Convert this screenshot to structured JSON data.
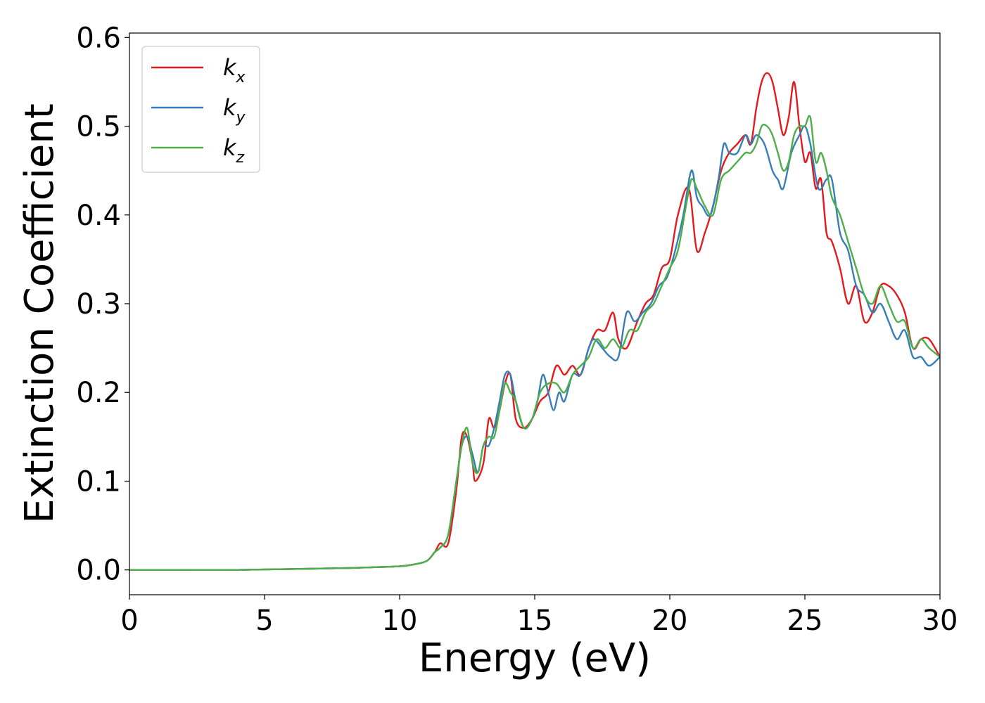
{
  "chart_data": {
    "type": "line",
    "xlabel": "Energy (eV)",
    "ylabel": "Extinction Coefficient",
    "xlim": [
      0,
      30
    ],
    "ylim": [
      -0.028,
      0.605
    ],
    "xticks": [
      0,
      5,
      10,
      15,
      20,
      25,
      30
    ],
    "yticks": [
      0.0,
      0.1,
      0.2,
      0.3,
      0.4,
      0.5,
      0.6
    ],
    "grid": false,
    "legend": "top-left",
    "series": [
      {
        "name": "k",
        "subscript": "x",
        "color": "#e41a1c",
        "x": [
          0,
          2,
          4,
          6,
          8,
          9,
          10,
          10.5,
          11,
          11.3,
          11.5,
          11.8,
          12.1,
          12.3,
          12.5,
          12.7,
          12.8,
          13.1,
          13.3,
          13.5,
          13.7,
          13.9,
          14.1,
          14.3,
          14.6,
          14.9,
          15.2,
          15.5,
          15.8,
          16.1,
          16.4,
          16.7,
          17.0,
          17.3,
          17.6,
          17.9,
          18.1,
          18.4,
          18.8,
          19.1,
          19.4,
          19.7,
          20.0,
          20.3,
          20.7,
          21.0,
          21.3,
          21.6,
          21.9,
          22.2,
          22.5,
          22.8,
          23.0,
          23.2,
          23.4,
          23.6,
          23.8,
          24.0,
          24.2,
          24.4,
          24.6,
          24.8,
          25.0,
          25.2,
          25.4,
          25.6,
          25.8,
          26.0,
          26.3,
          26.6,
          26.9,
          27.2,
          27.5,
          27.8,
          28.1,
          28.4,
          28.7,
          29.0,
          29.3,
          29.6,
          30.0
        ],
        "y": [
          0.0,
          0.0,
          0.0,
          0.001,
          0.002,
          0.003,
          0.004,
          0.006,
          0.01,
          0.02,
          0.03,
          0.03,
          0.09,
          0.15,
          0.15,
          0.12,
          0.1,
          0.12,
          0.17,
          0.16,
          0.18,
          0.21,
          0.22,
          0.17,
          0.16,
          0.17,
          0.19,
          0.2,
          0.23,
          0.22,
          0.23,
          0.22,
          0.25,
          0.27,
          0.27,
          0.29,
          0.26,
          0.25,
          0.28,
          0.3,
          0.31,
          0.34,
          0.35,
          0.4,
          0.43,
          0.36,
          0.38,
          0.41,
          0.45,
          0.47,
          0.48,
          0.49,
          0.48,
          0.52,
          0.55,
          0.56,
          0.55,
          0.52,
          0.49,
          0.51,
          0.55,
          0.5,
          0.46,
          0.47,
          0.43,
          0.44,
          0.38,
          0.37,
          0.34,
          0.3,
          0.32,
          0.28,
          0.29,
          0.32,
          0.32,
          0.31,
          0.29,
          0.25,
          0.26,
          0.26,
          0.24
        ]
      },
      {
        "name": "k",
        "subscript": "y",
        "color": "#377eb8",
        "x": [
          0,
          2,
          4,
          6,
          8,
          9,
          10,
          10.5,
          11,
          11.3,
          11.5,
          11.8,
          12.1,
          12.3,
          12.5,
          12.7,
          12.9,
          13.1,
          13.3,
          13.5,
          13.7,
          13.9,
          14.1,
          14.3,
          14.6,
          14.9,
          15.1,
          15.3,
          15.5,
          15.7,
          15.9,
          16.1,
          16.4,
          16.7,
          17.0,
          17.2,
          17.5,
          17.8,
          18.1,
          18.4,
          18.7,
          19.0,
          19.3,
          19.6,
          19.9,
          20.2,
          20.5,
          20.8,
          21.0,
          21.2,
          21.5,
          21.8,
          22.0,
          22.2,
          22.5,
          22.8,
          23.0,
          23.2,
          23.5,
          23.8,
          24.0,
          24.2,
          24.5,
          24.8,
          25.0,
          25.2,
          25.5,
          25.8,
          26.0,
          26.3,
          26.6,
          26.9,
          27.2,
          27.5,
          27.8,
          28.1,
          28.4,
          28.7,
          29.0,
          29.3,
          29.6,
          30.0
        ],
        "y": [
          0.0,
          0.0,
          0.0,
          0.001,
          0.002,
          0.003,
          0.004,
          0.006,
          0.01,
          0.02,
          0.025,
          0.04,
          0.1,
          0.14,
          0.15,
          0.13,
          0.11,
          0.14,
          0.14,
          0.16,
          0.19,
          0.22,
          0.22,
          0.19,
          0.16,
          0.17,
          0.19,
          0.22,
          0.2,
          0.18,
          0.2,
          0.19,
          0.22,
          0.22,
          0.25,
          0.26,
          0.25,
          0.24,
          0.24,
          0.29,
          0.28,
          0.29,
          0.3,
          0.32,
          0.33,
          0.36,
          0.4,
          0.45,
          0.42,
          0.41,
          0.4,
          0.44,
          0.48,
          0.47,
          0.47,
          0.49,
          0.48,
          0.49,
          0.48,
          0.45,
          0.44,
          0.43,
          0.47,
          0.49,
          0.5,
          0.48,
          0.43,
          0.44,
          0.44,
          0.38,
          0.36,
          0.32,
          0.31,
          0.29,
          0.3,
          0.28,
          0.26,
          0.27,
          0.24,
          0.24,
          0.23,
          0.24
        ]
      },
      {
        "name": "k",
        "subscript": "z",
        "color": "#4daf4a",
        "x": [
          0,
          2,
          4,
          6,
          8,
          9,
          10,
          10.5,
          11,
          11.3,
          11.5,
          11.8,
          12.1,
          12.3,
          12.5,
          12.7,
          12.9,
          13.1,
          13.3,
          13.5,
          13.7,
          13.9,
          14.1,
          14.3,
          14.6,
          14.9,
          15.2,
          15.5,
          15.8,
          16.1,
          16.4,
          16.7,
          17.0,
          17.3,
          17.6,
          17.9,
          18.2,
          18.5,
          18.8,
          19.1,
          19.4,
          19.7,
          20.0,
          20.3,
          20.6,
          20.8,
          21.0,
          21.3,
          21.6,
          21.9,
          22.2,
          22.5,
          22.8,
          23.0,
          23.2,
          23.4,
          23.6,
          23.8,
          24.0,
          24.2,
          24.4,
          24.6,
          24.8,
          25.0,
          25.2,
          25.4,
          25.6,
          25.8,
          26.0,
          26.3,
          26.6,
          26.9,
          27.2,
          27.5,
          27.8,
          28.1,
          28.4,
          28.7,
          29.0,
          29.3,
          29.6,
          30.0
        ],
        "y": [
          0.0,
          0.0,
          0.0,
          0.001,
          0.002,
          0.003,
          0.004,
          0.006,
          0.01,
          0.02,
          0.025,
          0.04,
          0.1,
          0.14,
          0.16,
          0.12,
          0.11,
          0.14,
          0.15,
          0.15,
          0.18,
          0.21,
          0.2,
          0.19,
          0.16,
          0.17,
          0.2,
          0.21,
          0.21,
          0.2,
          0.22,
          0.23,
          0.24,
          0.26,
          0.25,
          0.26,
          0.25,
          0.27,
          0.27,
          0.29,
          0.3,
          0.32,
          0.34,
          0.36,
          0.41,
          0.44,
          0.43,
          0.41,
          0.4,
          0.44,
          0.45,
          0.46,
          0.47,
          0.47,
          0.48,
          0.5,
          0.5,
          0.49,
          0.47,
          0.45,
          0.46,
          0.49,
          0.5,
          0.5,
          0.51,
          0.46,
          0.47,
          0.45,
          0.42,
          0.4,
          0.37,
          0.34,
          0.31,
          0.3,
          0.32,
          0.3,
          0.28,
          0.28,
          0.25,
          0.26,
          0.25,
          0.24
        ]
      }
    ]
  }
}
